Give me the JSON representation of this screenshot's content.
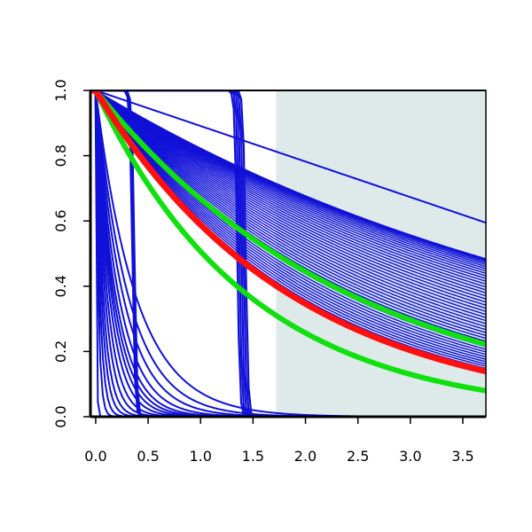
{
  "chart_data": {
    "type": "line",
    "title": "",
    "xlabel": "",
    "ylabel": "",
    "xlim": [
      -0.05,
      3.72
    ],
    "ylim": [
      0,
      1
    ],
    "x_ticks": [
      "0.0",
      "0.5",
      "1.0",
      "1.5",
      "2.0",
      "2.5",
      "3.0",
      "3.5"
    ],
    "y_ticks": [
      "0.0",
      "0.2",
      "0.4",
      "0.6",
      "0.8",
      "1.0"
    ],
    "grid": false,
    "legend": "none",
    "shaded_region": {
      "x_from": 1.72,
      "x_to": 3.72,
      "color": "#deeaea"
    },
    "colors": {
      "curves": "#1010d8",
      "central": "#ff1010",
      "band": "#10e010",
      "axis": "#000000"
    },
    "series": [
      {
        "role": "linear",
        "slope": 0.109,
        "count": 1
      },
      {
        "role": "exponential-bundle",
        "rate_min": 0.195,
        "rate_max": 0.525,
        "count": 45
      },
      {
        "role": "fast-decay",
        "rates": [
          150,
          40,
          25,
          18,
          14,
          11,
          9,
          7.5,
          6.5,
          5.8,
          5.2,
          4.5,
          3.8,
          3.2,
          2.6
        ],
        "count": 15
      },
      {
        "role": "sigmoid-step",
        "centers": [
          0.35,
          0.36,
          0.37,
          1.35,
          1.37,
          1.39,
          1.41,
          1.43
        ],
        "count": 8
      },
      {
        "role": "band-upper",
        "rate": 0.405
      },
      {
        "role": "band-lower",
        "rate": 0.68
      },
      {
        "role": "central",
        "rate": 0.53
      }
    ]
  }
}
